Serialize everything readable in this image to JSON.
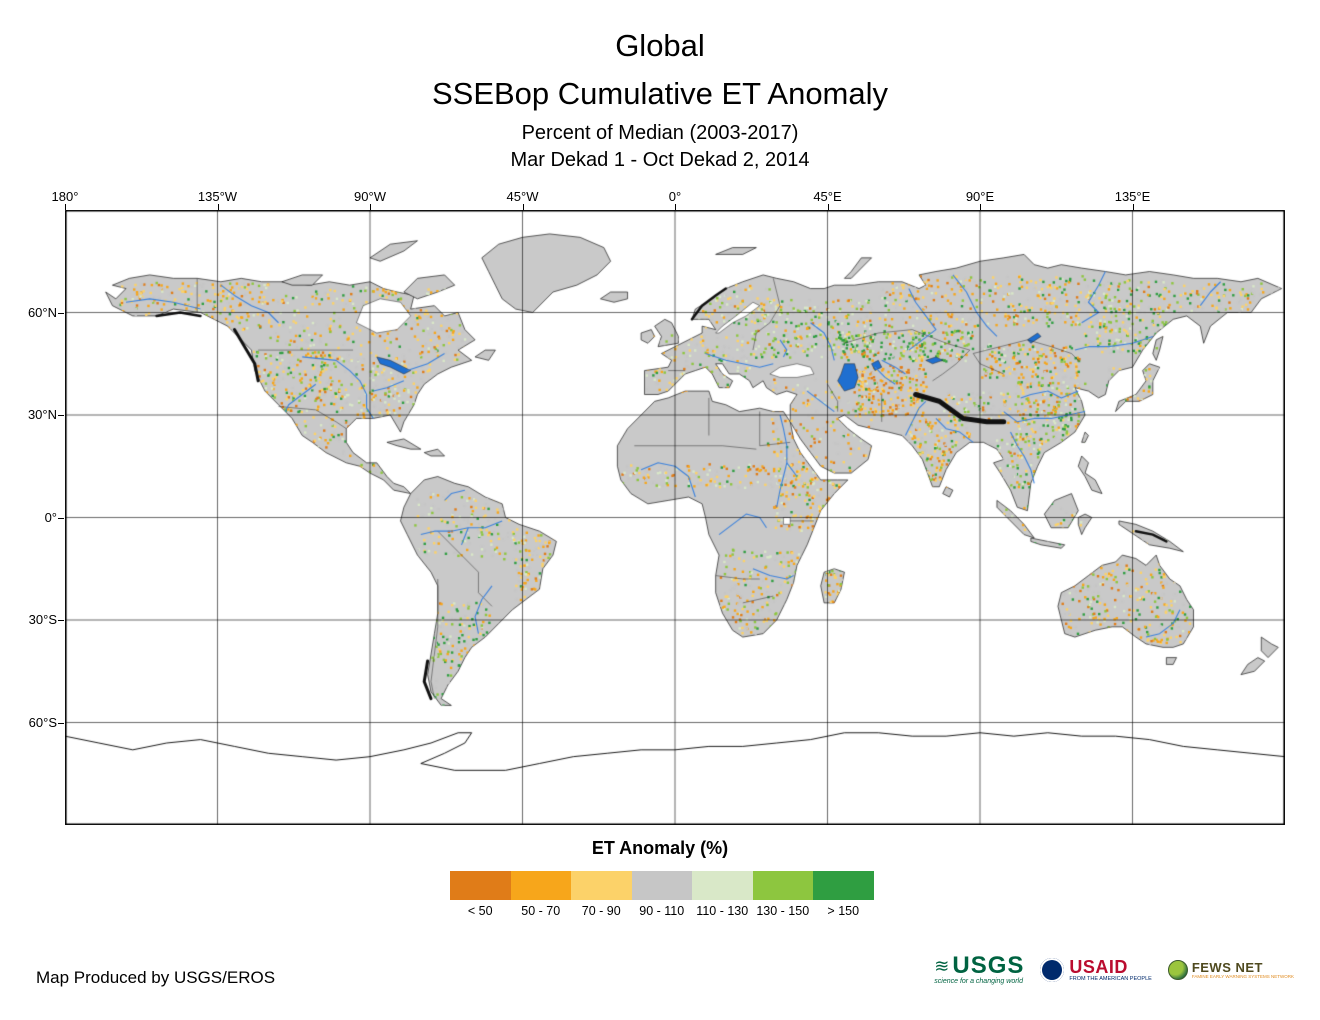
{
  "title": {
    "line1": "Global",
    "line2": "SSEBop Cumulative ET Anomaly",
    "subtitle1": "Percent of Median (2003-2017)",
    "subtitle2": "Mar Dekad 1 - Oct Dekad 2, 2014"
  },
  "map": {
    "lon_labels": [
      "180°",
      "135°W",
      "90°W",
      "45°W",
      "0°",
      "45°E",
      "90°E",
      "135°E"
    ],
    "lat_labels": [
      "60°N",
      "30°N",
      "0°",
      "30°S",
      "60°S"
    ],
    "colors": {
      "land": "#c9c9c9",
      "ocean": "#ffffff",
      "coast": "#1a1a1a",
      "river": "#3c82dc",
      "lake": "#1f6fd0",
      "grid": "#000000",
      "nodata": "#111111"
    }
  },
  "legend": {
    "title": "ET Anomaly (%)",
    "classes": [
      {
        "label": "< 50",
        "color": "#e07c18"
      },
      {
        "label": "50 - 70",
        "color": "#f7a61b"
      },
      {
        "label": "70 - 90",
        "color": "#fcd269"
      },
      {
        "label": "90 - 110",
        "color": "#c6c6c6"
      },
      {
        "label": "110 - 130",
        "color": "#d9e8c8"
      },
      {
        "label": "130 - 150",
        "color": "#8dc63f"
      },
      {
        "label": "> 150",
        "color": "#2f9e41"
      }
    ]
  },
  "footer": {
    "credit": "Map Produced by USGS/EROS"
  },
  "logos": {
    "usgs": {
      "name": "USGS",
      "tagline": "science for a changing world"
    },
    "usaid": {
      "name": "USAID",
      "tagline": "FROM THE AMERICAN PEOPLE"
    },
    "fewsnet": {
      "name": "FEWS NET",
      "tagline": "FAMINE EARLY WARNING SYSTEMS NETWORK"
    }
  }
}
